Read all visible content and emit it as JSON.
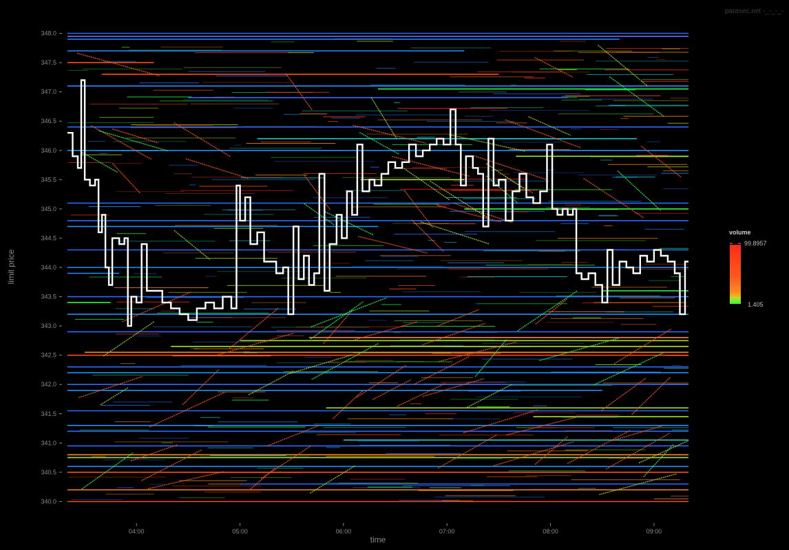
{
  "watermark": "parasec.net -_-_-_-",
  "chart_data": {
    "type": "heatmap",
    "title": "",
    "xlabel": "time",
    "ylabel": "limit price",
    "x_ticks": [
      "04:00",
      "05:00",
      "06:00",
      "07:00",
      "08:00",
      "09:00"
    ],
    "xlim": [
      "03:20",
      "09:20"
    ],
    "y_ticks": [
      "340.0",
      "340.5",
      "341.0",
      "341.5",
      "342.0",
      "342.5",
      "343.0",
      "343.5",
      "344.0",
      "344.5",
      "345.0",
      "345.5",
      "346.0",
      "346.5",
      "347.0",
      "347.5",
      "348.0"
    ],
    "ylim": [
      339.9,
      348.1
    ],
    "grid": false,
    "legend": {
      "title": "volume",
      "position": "right",
      "max_label": "99.8957",
      "min_label": "1.405",
      "colors": [
        "#ff2a1a",
        "#ff5a1e",
        "#ff8a20",
        "#c8d820",
        "#2bff40"
      ]
    },
    "background": "#000000",
    "price_line_color": "#ffffff",
    "level_colors": [
      "#2b6bff",
      "#1f8fff",
      "#22c8c8",
      "#2bff40",
      "#a8e020",
      "#ff8a20",
      "#ff4a1a",
      "#ff2a1a"
    ],
    "price_series": {
      "name": "",
      "points": [
        [
          "03:20",
          346.3
        ],
        [
          "03:23",
          345.9
        ],
        [
          "03:26",
          345.7
        ],
        [
          "03:28",
          347.2
        ],
        [
          "03:30",
          345.5
        ],
        [
          "03:33",
          345.4
        ],
        [
          "03:36",
          345.5
        ],
        [
          "03:38",
          344.6
        ],
        [
          "03:40",
          344.9
        ],
        [
          "03:42",
          344.0
        ],
        [
          "03:44",
          343.7
        ],
        [
          "03:46",
          344.5
        ],
        [
          "03:50",
          344.4
        ],
        [
          "03:53",
          344.5
        ],
        [
          "03:55",
          343.0
        ],
        [
          "03:57",
          343.5
        ],
        [
          "04:00",
          343.4
        ],
        [
          "04:03",
          344.4
        ],
        [
          "04:06",
          343.6
        ],
        [
          "04:10",
          343.6
        ],
        [
          "04:15",
          343.4
        ],
        [
          "04:20",
          343.3
        ],
        [
          "04:25",
          343.2
        ],
        [
          "04:30",
          343.1
        ],
        [
          "04:35",
          343.3
        ],
        [
          "04:40",
          343.4
        ],
        [
          "04:45",
          343.3
        ],
        [
          "04:50",
          343.5
        ],
        [
          "04:55",
          343.3
        ],
        [
          "04:58",
          345.4
        ],
        [
          "05:00",
          344.8
        ],
        [
          "05:03",
          345.2
        ],
        [
          "05:06",
          344.4
        ],
        [
          "05:10",
          344.6
        ],
        [
          "05:14",
          344.1
        ],
        [
          "05:18",
          344.1
        ],
        [
          "05:21",
          343.9
        ],
        [
          "05:25",
          344.0
        ],
        [
          "05:28",
          343.2
        ],
        [
          "05:31",
          344.7
        ],
        [
          "05:34",
          343.8
        ],
        [
          "05:37",
          344.2
        ],
        [
          "05:40",
          343.7
        ],
        [
          "05:43",
          343.9
        ],
        [
          "05:46",
          345.6
        ],
        [
          "05:49",
          343.6
        ],
        [
          "05:52",
          344.4
        ],
        [
          "05:56",
          344.9
        ],
        [
          "05:59",
          344.5
        ],
        [
          "06:02",
          345.3
        ],
        [
          "06:05",
          344.9
        ],
        [
          "06:08",
          346.1
        ],
        [
          "06:11",
          345.3
        ],
        [
          "06:15",
          345.5
        ],
        [
          "06:18",
          345.4
        ],
        [
          "06:22",
          345.6
        ],
        [
          "06:26",
          345.8
        ],
        [
          "06:30",
          345.7
        ],
        [
          "06:34",
          345.8
        ],
        [
          "06:38",
          346.1
        ],
        [
          "06:42",
          345.9
        ],
        [
          "06:46",
          346.0
        ],
        [
          "06:50",
          346.1
        ],
        [
          "06:54",
          346.2
        ],
        [
          "06:58",
          346.1
        ],
        [
          "07:02",
          346.7
        ],
        [
          "07:05",
          346.1
        ],
        [
          "07:08",
          345.4
        ],
        [
          "07:11",
          345.9
        ],
        [
          "07:15",
          345.7
        ],
        [
          "07:18",
          345.6
        ],
        [
          "07:21",
          344.7
        ],
        [
          "07:24",
          346.2
        ],
        [
          "07:27",
          345.4
        ],
        [
          "07:30",
          345.5
        ],
        [
          "07:34",
          344.8
        ],
        [
          "07:38",
          345.3
        ],
        [
          "07:42",
          345.6
        ],
        [
          "07:46",
          345.2
        ],
        [
          "07:50",
          345.1
        ],
        [
          "07:54",
          345.3
        ],
        [
          "07:58",
          346.1
        ],
        [
          "08:01",
          345.0
        ],
        [
          "08:04",
          344.9
        ],
        [
          "08:07",
          345.0
        ],
        [
          "08:10",
          344.9
        ],
        [
          "08:13",
          345.0
        ],
        [
          "08:15",
          343.9
        ],
        [
          "08:18",
          343.8
        ],
        [
          "08:22",
          343.9
        ],
        [
          "08:26",
          343.7
        ],
        [
          "08:30",
          343.4
        ],
        [
          "08:33",
          344.3
        ],
        [
          "08:36",
          343.7
        ],
        [
          "08:40",
          344.1
        ],
        [
          "08:44",
          344.0
        ],
        [
          "08:48",
          343.9
        ],
        [
          "08:52",
          344.2
        ],
        [
          "08:56",
          344.1
        ],
        [
          "09:00",
          344.3
        ],
        [
          "09:04",
          344.2
        ],
        [
          "09:08",
          344.1
        ],
        [
          "09:12",
          343.9
        ],
        [
          "09:15",
          343.2
        ],
        [
          "09:18",
          344.1
        ],
        [
          "09:20",
          344.1
        ]
      ]
    },
    "resting_levels": [
      {
        "price": 348.0,
        "start": "03:20",
        "end": "09:20",
        "color": "#2b6bff"
      },
      {
        "price": 347.95,
        "start": "03:20",
        "end": "09:20",
        "color": "#6a6aff"
      },
      {
        "price": 347.9,
        "start": "03:20",
        "end": "08:40",
        "color": "#1f8fff"
      },
      {
        "price": 347.7,
        "start": "03:20",
        "end": "07:10",
        "color": "#1f8fff"
      },
      {
        "price": 347.5,
        "start": "03:20",
        "end": "04:10",
        "color": "#ff4a1a"
      },
      {
        "price": 347.3,
        "start": "03:40",
        "end": "07:30",
        "color": "#ff4a1a"
      },
      {
        "price": 347.1,
        "start": "03:20",
        "end": "09:20",
        "color": "#1f8fff"
      },
      {
        "price": 347.05,
        "start": "06:20",
        "end": "09:20",
        "color": "#2bff40"
      },
      {
        "price": 346.9,
        "start": "04:30",
        "end": "08:10",
        "color": "#2b6bff"
      },
      {
        "price": 346.4,
        "start": "03:20",
        "end": "09:20",
        "color": "#2b6bff"
      },
      {
        "price": 346.2,
        "start": "05:10",
        "end": "08:50",
        "color": "#22c8c8"
      },
      {
        "price": 346.0,
        "start": "03:20",
        "end": "09:20",
        "color": "#1f8fff"
      },
      {
        "price": 345.9,
        "start": "07:40",
        "end": "09:20",
        "color": "#a8e020"
      },
      {
        "price": 345.5,
        "start": "06:10",
        "end": "07:10",
        "color": "#a8e020"
      },
      {
        "price": 345.1,
        "start": "03:20",
        "end": "09:20",
        "color": "#2b6bff"
      },
      {
        "price": 345.0,
        "start": "07:10",
        "end": "09:20",
        "color": "#2bff40"
      },
      {
        "price": 344.8,
        "start": "03:20",
        "end": "09:20",
        "color": "#2b6bff"
      },
      {
        "price": 344.7,
        "start": "03:20",
        "end": "06:20",
        "color": "#1f8fff"
      },
      {
        "price": 344.3,
        "start": "03:20",
        "end": "09:20",
        "color": "#2b6bff"
      },
      {
        "price": 344.0,
        "start": "03:20",
        "end": "09:20",
        "color": "#1f8fff"
      },
      {
        "price": 343.9,
        "start": "03:20",
        "end": "03:50",
        "color": "#1f8fff"
      },
      {
        "price": 343.6,
        "start": "08:30",
        "end": "09:20",
        "color": "#2bff40"
      },
      {
        "price": 343.5,
        "start": "03:20",
        "end": "09:20",
        "color": "#2b6bff"
      },
      {
        "price": 343.4,
        "start": "03:20",
        "end": "03:45",
        "color": "#2bff40"
      },
      {
        "price": 343.2,
        "start": "03:20",
        "end": "09:20",
        "color": "#1f8fff"
      },
      {
        "price": 342.9,
        "start": "03:20",
        "end": "09:20",
        "color": "#2b6bff"
      },
      {
        "price": 342.8,
        "start": "05:40",
        "end": "09:20",
        "color": "#ff8a20"
      },
      {
        "price": 342.75,
        "start": "05:00",
        "end": "09:20",
        "color": "#a8e020"
      },
      {
        "price": 342.65,
        "start": "04:20",
        "end": "09:20",
        "color": "#a8e020"
      },
      {
        "price": 342.55,
        "start": "03:30",
        "end": "09:20",
        "color": "#ff8a20"
      },
      {
        "price": 342.5,
        "start": "03:20",
        "end": "09:20",
        "color": "#ff4a1a"
      },
      {
        "price": 342.3,
        "start": "03:20",
        "end": "09:20",
        "color": "#2b6bff"
      },
      {
        "price": 342.2,
        "start": "03:20",
        "end": "09:20",
        "color": "#1f8fff"
      },
      {
        "price": 342.0,
        "start": "03:20",
        "end": "09:20",
        "color": "#2b6bff"
      },
      {
        "price": 341.9,
        "start": "03:20",
        "end": "08:30",
        "color": "#1f8fff"
      },
      {
        "price": 341.6,
        "start": "05:50",
        "end": "09:20",
        "color": "#a8e020"
      },
      {
        "price": 341.55,
        "start": "03:20",
        "end": "09:20",
        "color": "#2b6bff"
      },
      {
        "price": 341.45,
        "start": "07:50",
        "end": "09:20",
        "color": "#a8e020"
      },
      {
        "price": 341.3,
        "start": "03:20",
        "end": "09:20",
        "color": "#1f8fff"
      },
      {
        "price": 341.2,
        "start": "03:20",
        "end": "09:20",
        "color": "#2b6bff"
      },
      {
        "price": 341.05,
        "start": "06:00",
        "end": "09:20",
        "color": "#22c8c8"
      },
      {
        "price": 340.95,
        "start": "03:20",
        "end": "09:20",
        "color": "#2b6bff"
      },
      {
        "price": 340.8,
        "start": "03:20",
        "end": "09:20",
        "color": "#ff8a20"
      },
      {
        "price": 340.75,
        "start": "03:20",
        "end": "09:20",
        "color": "#a8e020"
      },
      {
        "price": 340.6,
        "start": "03:20",
        "end": "09:20",
        "color": "#1f8fff"
      },
      {
        "price": 340.5,
        "start": "03:20",
        "end": "09:20",
        "color": "#ff4a1a"
      },
      {
        "price": 340.3,
        "start": "05:00",
        "end": "09:20",
        "color": "#2b6bff"
      },
      {
        "price": 340.2,
        "start": "03:20",
        "end": "09:20",
        "color": "#ff8a20"
      },
      {
        "price": 340.0,
        "start": "03:20",
        "end": "09:20",
        "color": "#ff4a1a"
      }
    ]
  }
}
